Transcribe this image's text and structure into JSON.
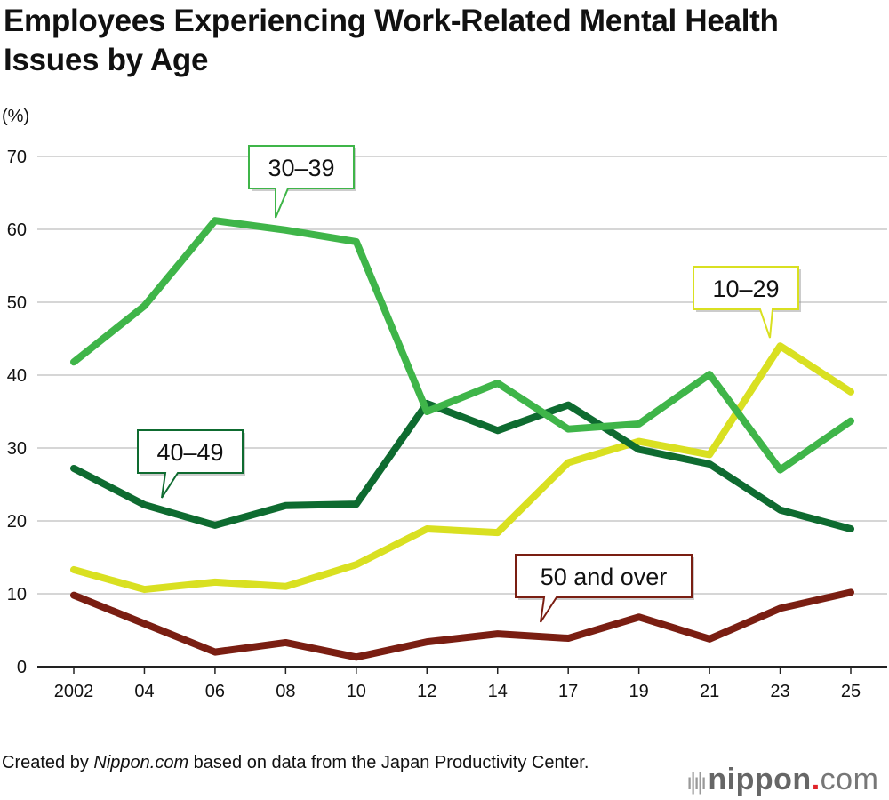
{
  "chart_data": {
    "type": "line",
    "title": "Employees Experiencing Work-Related Mental Health Issues by Age",
    "ylabel": "(%)",
    "ylim": [
      0,
      70
    ],
    "yticks": [
      0,
      10,
      20,
      30,
      40,
      50,
      60,
      70
    ],
    "grid": true,
    "categories": [
      "2002",
      "04",
      "06",
      "08",
      "10",
      "12",
      "14",
      "17",
      "19",
      "21",
      "23",
      "25"
    ],
    "series": [
      {
        "name": "30–39",
        "color": "#3fb549",
        "values": [
          41.8,
          49.5,
          61.2,
          59.9,
          58.3,
          35.0,
          38.9,
          32.6,
          33.3,
          40.1,
          27.0,
          33.7
        ]
      },
      {
        "name": "40–49",
        "color": "#0e6b30",
        "values": [
          27.2,
          22.2,
          19.4,
          22.1,
          22.3,
          36.1,
          32.4,
          35.9,
          29.8,
          27.8,
          21.5,
          18.9
        ]
      },
      {
        "name": "10–29",
        "color": "#d9e021",
        "values": [
          13.3,
          10.6,
          11.6,
          11.0,
          14.0,
          18.9,
          18.4,
          28.0,
          30.9,
          29.1,
          44.0,
          37.7
        ]
      },
      {
        "name": "50 and over",
        "color": "#7a1e12",
        "values": [
          9.8,
          5.9,
          2.0,
          3.3,
          1.3,
          3.4,
          4.5,
          3.9,
          6.8,
          3.8,
          8.0,
          10.2
        ]
      }
    ]
  },
  "credit": {
    "prefix": "Created by ",
    "site": "Nippon.com",
    "suffix": " based on data from the Japan Productivity Center."
  },
  "logo": {
    "name": "nippon",
    "dot": ".",
    "tld": "com"
  }
}
